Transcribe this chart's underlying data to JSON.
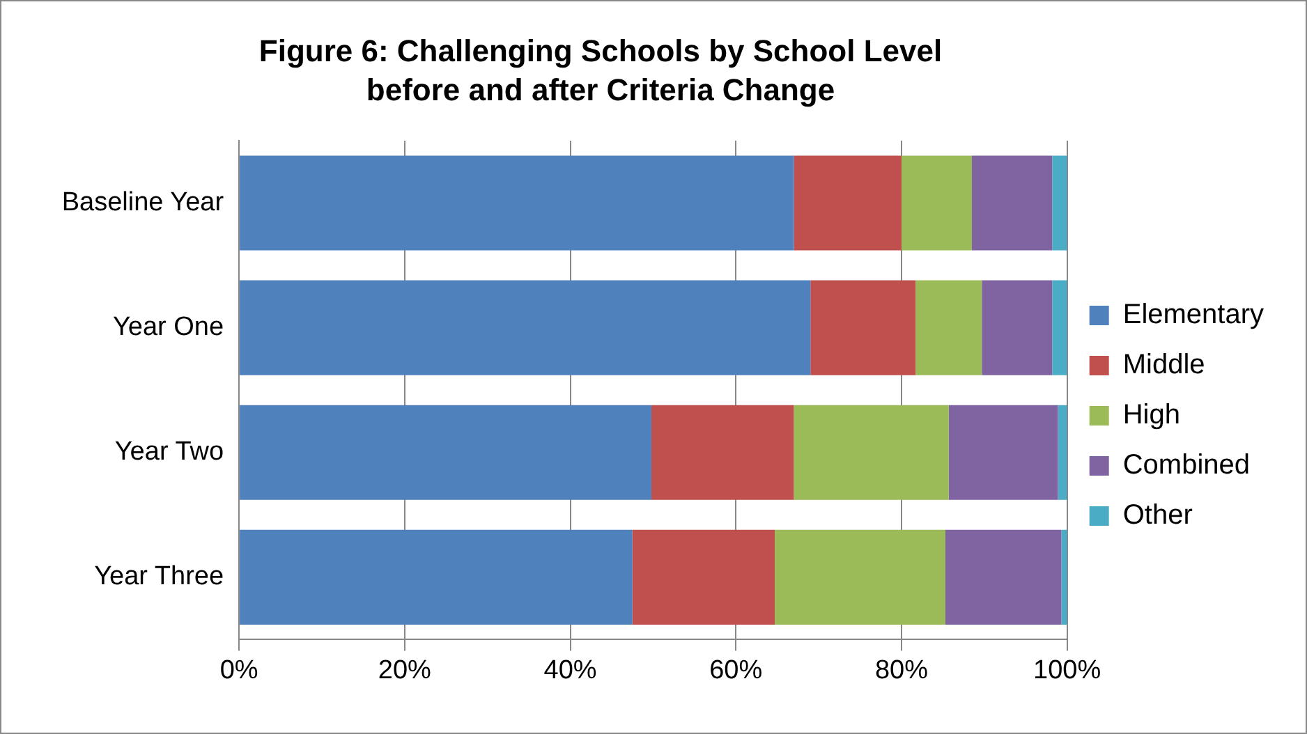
{
  "chart_data": {
    "type": "bar",
    "title": "Figure 6:  Challenging Schools by School Level before and after Criteria Change",
    "orientation": "horizontal",
    "stacked": true,
    "categories": [
      "Baseline Year",
      "Year One",
      "Year Two",
      "Year Three"
    ],
    "series": [
      {
        "name": "Elementary",
        "color": "#4f81bd",
        "values": [
          67,
          69,
          49.8,
          47.5
        ]
      },
      {
        "name": "Middle",
        "color": "#c0504d",
        "values": [
          13,
          12.7,
          17.2,
          17.2
        ]
      },
      {
        "name": "High",
        "color": "#9bbb59",
        "values": [
          8.5,
          8,
          18.7,
          20.6
        ]
      },
      {
        "name": "Combined",
        "color": "#8064a2",
        "values": [
          9.7,
          8.5,
          13.2,
          14
        ]
      },
      {
        "name": "Other",
        "color": "#4bacc6",
        "values": [
          1.8,
          1.8,
          1.1,
          0.7
        ]
      }
    ],
    "xlim": [
      0,
      100
    ],
    "xticks": [
      {
        "value": 0,
        "label": "0%"
      },
      {
        "value": 20,
        "label": "20%"
      },
      {
        "value": 40,
        "label": "40%"
      },
      {
        "value": 60,
        "label": "60%"
      },
      {
        "value": 80,
        "label": "80%"
      },
      {
        "value": 100,
        "label": "100%"
      }
    ],
    "grid": "x",
    "legend": "right"
  }
}
